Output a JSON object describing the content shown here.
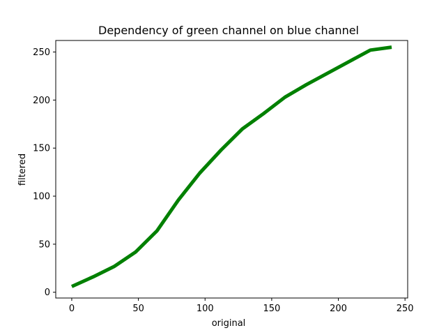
{
  "chart_data": {
    "type": "line",
    "title": "Dependency of green channel on blue channel",
    "xlabel": "original",
    "ylabel": "filtered",
    "xlim": [
      -12,
      252
    ],
    "ylim": [
      -6,
      262
    ],
    "xticks": [
      0,
      50,
      100,
      150,
      200,
      250
    ],
    "yticks": [
      0,
      50,
      100,
      150,
      200,
      250
    ],
    "grid": false,
    "color": "#008000",
    "series": [
      {
        "values_x": [
          0,
          16,
          32,
          48,
          64,
          80,
          96,
          112,
          128,
          144,
          160,
          176,
          192,
          208,
          224,
          240
        ],
        "values_y": [
          6,
          16,
          27,
          42,
          64,
          96,
          124,
          148,
          170,
          186,
          203,
          216,
          228,
          240,
          252,
          255
        ]
      }
    ]
  }
}
